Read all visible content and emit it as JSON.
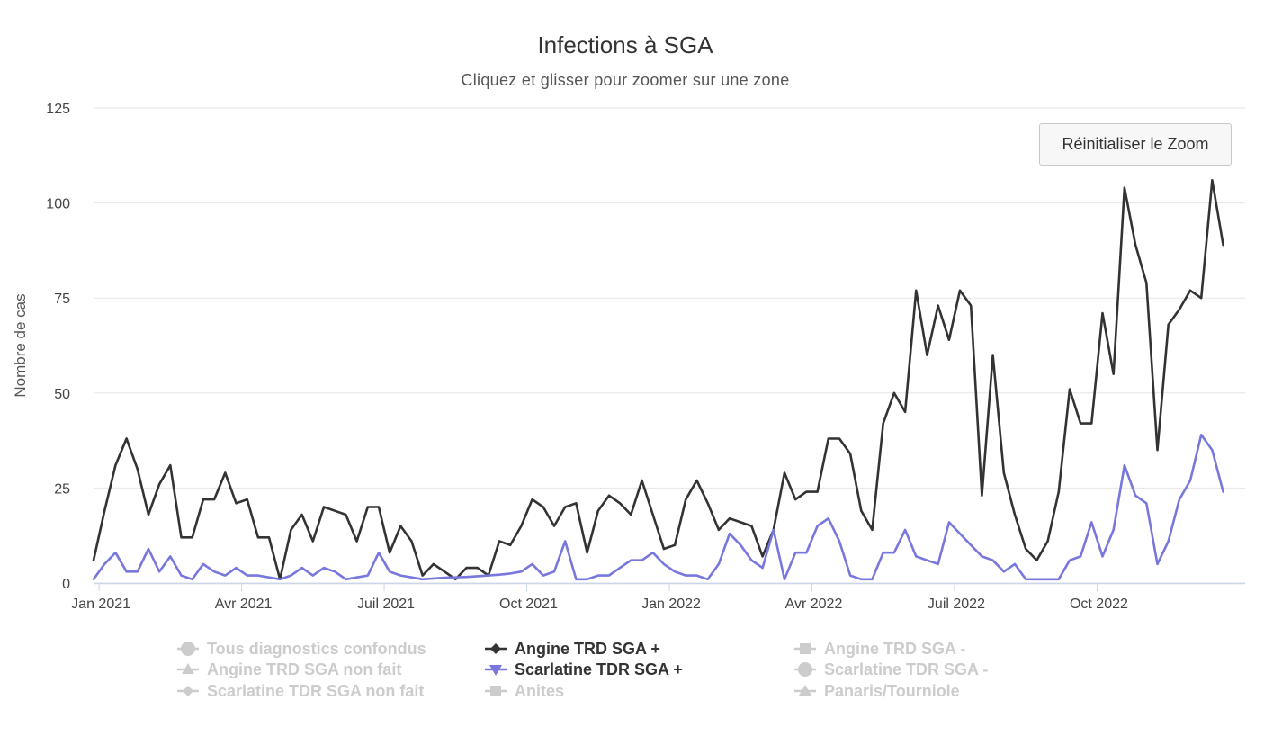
{
  "chart_data": {
    "type": "line",
    "title": "Infections à SGA",
    "subtitle": "Cliquez et glisser pour zoomer sur une zone",
    "ylabel": "Nombre de cas",
    "xlabel": "",
    "ylim": [
      0,
      125
    ],
    "y_ticks": [
      "0",
      "25",
      "50",
      "75",
      "100",
      "125"
    ],
    "x_ticks": [
      "Jan 2021",
      "Avr 2021",
      "Juil 2021",
      "Oct 2021",
      "Jan 2022",
      "Avr 2022",
      "Juil 2022",
      "Oct 2022"
    ],
    "x_tick_weeks": [
      0.5,
      13.5,
      26.5,
      39.5,
      52.5,
      65.5,
      78.5,
      91.5
    ],
    "x_weeks": 105,
    "grid": true,
    "legend_position": "bottom",
    "series": [
      {
        "name": "Angine TRD SGA +",
        "color": "#333333",
        "visible": true,
        "values": [
          6,
          19,
          31,
          38,
          30,
          18,
          26,
          31,
          12,
          12,
          22,
          22,
          29,
          21,
          22,
          12,
          12,
          1,
          14,
          18,
          11,
          20,
          19,
          18,
          11,
          20,
          20,
          8,
          15,
          11,
          2,
          5,
          3,
          1,
          4,
          4,
          2,
          11,
          10,
          15,
          22,
          20,
          15,
          20,
          21,
          8,
          19,
          23,
          21,
          18,
          27,
          18,
          9,
          10,
          22,
          27,
          21,
          14,
          17,
          16,
          15,
          7,
          14,
          29,
          22,
          24,
          24,
          38,
          38,
          34,
          19,
          14,
          42,
          50,
          45,
          77,
          60,
          73,
          64,
          77,
          73,
          23,
          60,
          29,
          18,
          9,
          6,
          11,
          24,
          51,
          42,
          42,
          71,
          55,
          104,
          89,
          79,
          35,
          68,
          72,
          77,
          75,
          106,
          89
        ]
      },
      {
        "name": "Scarlatine TDR SGA +",
        "color": "#7777dd",
        "visible": true,
        "values": [
          1,
          5,
          8,
          3,
          3,
          9,
          3,
          7,
          2,
          1,
          5,
          3,
          2,
          4,
          2,
          2,
          1.5,
          1,
          2,
          4,
          2,
          4,
          3,
          1,
          1.5,
          2,
          8,
          3,
          2,
          1.5,
          1,
          1.2,
          1.4,
          1.5,
          1.6,
          1.8,
          2,
          2.2,
          2.5,
          3,
          5,
          2,
          3,
          11,
          1,
          1,
          2,
          2,
          4,
          6,
          6,
          8,
          5,
          3,
          2,
          2,
          1,
          5,
          13,
          10,
          6,
          4,
          14,
          1,
          8,
          8,
          15,
          17,
          11,
          2,
          1,
          1,
          8,
          8,
          14,
          7,
          6,
          5,
          16,
          13,
          10,
          7,
          6,
          3,
          5,
          1,
          1,
          1,
          1,
          6,
          7,
          16,
          7,
          14,
          31,
          23,
          21,
          5,
          11,
          22,
          27,
          39,
          35,
          24
        ]
      }
    ],
    "legend": [
      {
        "name": "Tous diagnostics confondus",
        "symbol": "circle",
        "active": false
      },
      {
        "name": "Angine TRD SGA +",
        "symbol": "diamond",
        "active": true,
        "color": "#333333"
      },
      {
        "name": "Angine TRD SGA -",
        "symbol": "square",
        "active": false
      },
      {
        "name": "Angine TRD SGA non fait",
        "symbol": "triangle",
        "active": false
      },
      {
        "name": "Scarlatine TDR SGA +",
        "symbol": "triangle-down",
        "active": true,
        "color": "#7777dd"
      },
      {
        "name": "Scarlatine TDR SGA -",
        "symbol": "circle",
        "active": false
      },
      {
        "name": "Scarlatine TDR SGA non fait",
        "symbol": "diamond",
        "active": false
      },
      {
        "name": "Anites",
        "symbol": "square",
        "active": false
      },
      {
        "name": "Panaris/Tourniole",
        "symbol": "triangle",
        "active": false
      }
    ]
  },
  "reset_zoom_label": "Réinitialiser le Zoom",
  "colors": {
    "inactive": "#cccccc",
    "grid": "#e6e6e6",
    "axis": "#ccd6eb"
  }
}
